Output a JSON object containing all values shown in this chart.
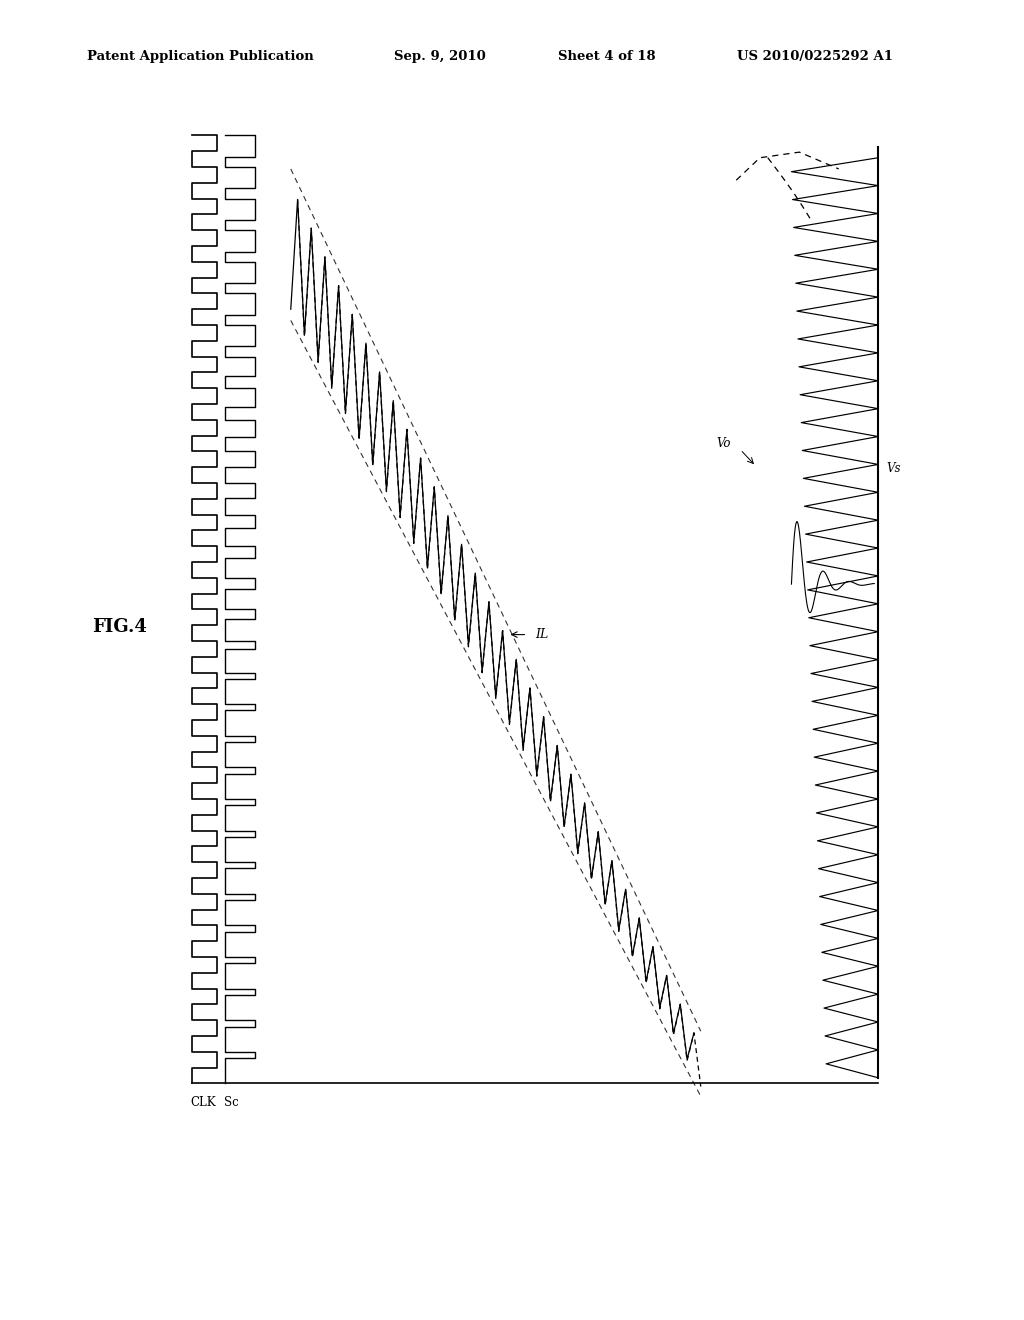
{
  "background_color": "#ffffff",
  "line_color": "#000000",
  "header_left": "Patent Application Publication",
  "header_date": "Sep. 9, 2010",
  "header_sheet": "Sheet 4 of 18",
  "header_patent": "US 2010/0225292 A1",
  "fig_label": "FIG.4",
  "clk_label": "CLK",
  "sc_label": "Sc",
  "il_label": "IL",
  "vo_label": "Vo",
  "vs_label": "Vs",
  "n_pulses": 30
}
